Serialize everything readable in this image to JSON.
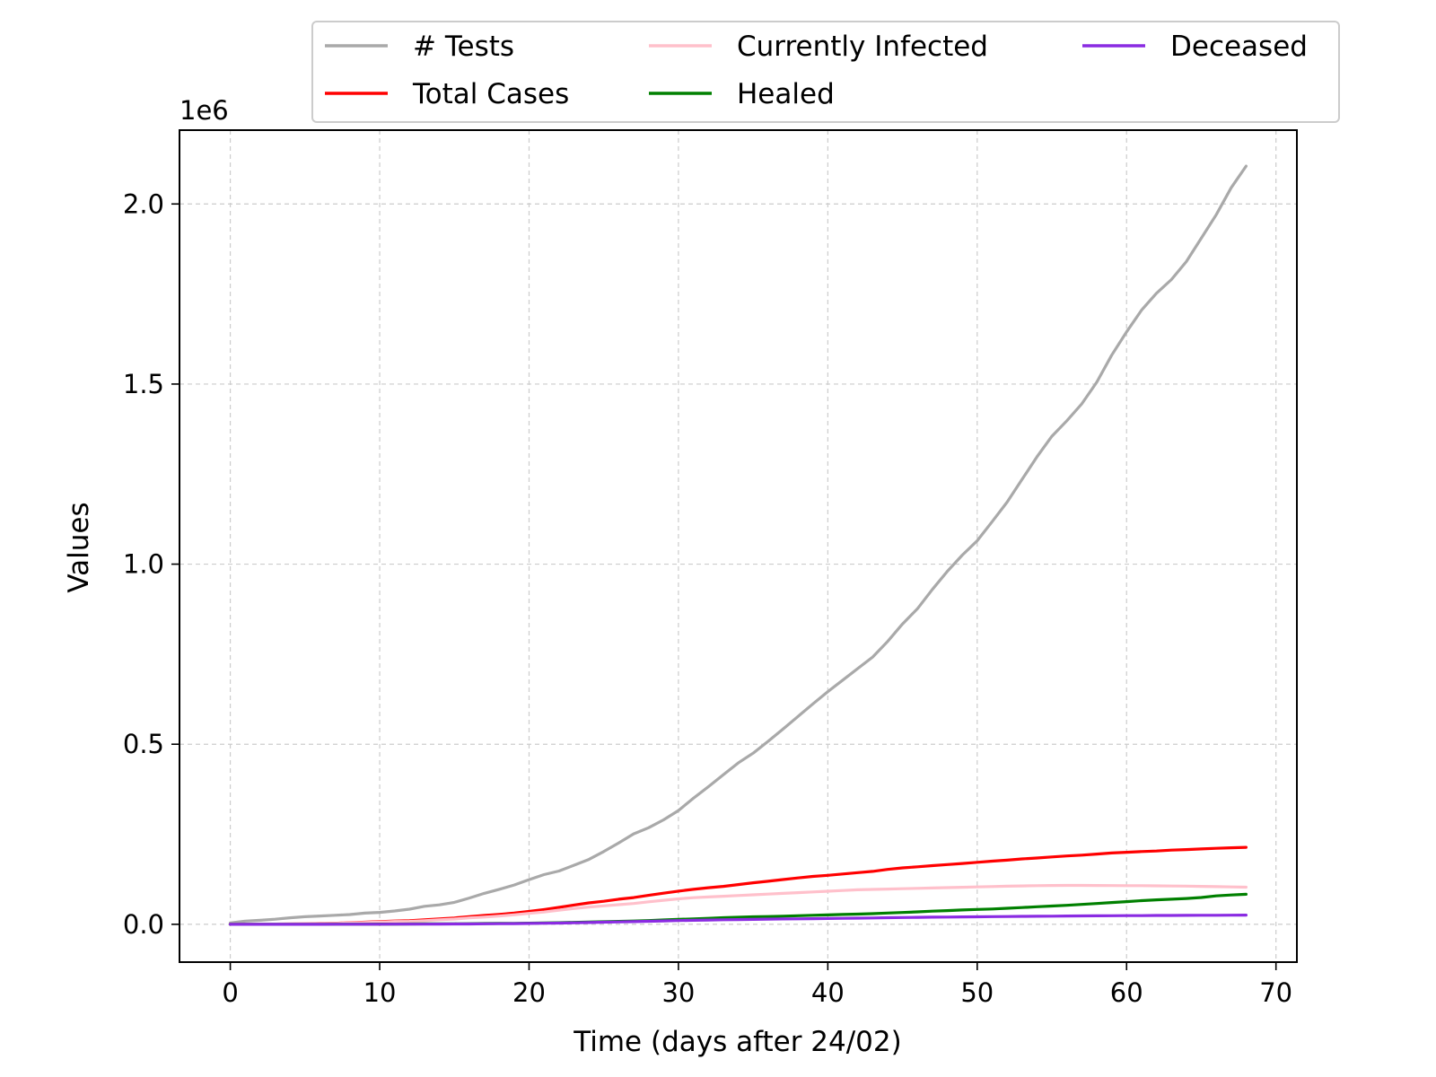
{
  "chart_data": {
    "type": "line",
    "title": "",
    "xlabel": "Time (days after 24/02)",
    "ylabel": "Values",
    "y_offset_label": "1e6",
    "xlim": [
      -3.4,
      71.4
    ],
    "ylim": [
      -0.105,
      2.205
    ],
    "x_ticks": [
      0,
      10,
      20,
      30,
      40,
      50,
      60,
      70
    ],
    "x_tick_labels": [
      "0",
      "10",
      "20",
      "30",
      "40",
      "50",
      "60",
      "70"
    ],
    "y_ticks": [
      0.0,
      0.5,
      1.0,
      1.5,
      2.0
    ],
    "y_tick_labels": [
      "0.0",
      "0.5",
      "1.0",
      "1.5",
      "2.0"
    ],
    "grid": true,
    "legend_position": "top, above plot, 3 columns",
    "x": [
      0,
      1,
      2,
      3,
      4,
      5,
      6,
      7,
      8,
      9,
      10,
      11,
      12,
      13,
      14,
      15,
      16,
      17,
      18,
      19,
      20,
      21,
      22,
      23,
      24,
      25,
      26,
      27,
      28,
      29,
      30,
      31,
      32,
      33,
      34,
      35,
      36,
      37,
      38,
      39,
      40,
      41,
      42,
      43,
      44,
      45,
      46,
      47,
      48,
      49,
      50,
      51,
      52,
      53,
      54,
      55,
      56,
      57,
      58,
      59,
      60,
      61,
      62,
      63,
      64,
      65,
      66,
      67,
      68
    ],
    "series": [
      {
        "name": "# Tests",
        "color": "#a9a9a9",
        "values": [
          0.004,
          0.009,
          0.011,
          0.014,
          0.018,
          0.021,
          0.023,
          0.025,
          0.027,
          0.031,
          0.033,
          0.037,
          0.042,
          0.05,
          0.054,
          0.061,
          0.073,
          0.086,
          0.097,
          0.109,
          0.124,
          0.138,
          0.148,
          0.164,
          0.18,
          0.202,
          0.226,
          0.251,
          0.268,
          0.29,
          0.316,
          0.35,
          0.382,
          0.415,
          0.448,
          0.475,
          0.508,
          0.542,
          0.577,
          0.612,
          0.646,
          0.678,
          0.71,
          0.742,
          0.785,
          0.834,
          0.876,
          0.93,
          0.98,
          1.025,
          1.065,
          1.118,
          1.172,
          1.235,
          1.298,
          1.355,
          1.398,
          1.445,
          1.505,
          1.58,
          1.645,
          1.705,
          1.752,
          1.79,
          1.84,
          1.905,
          1.97,
          2.045,
          2.105
        ]
      },
      {
        "name": "Total Cases",
        "color": "#ff0000",
        "values": [
          0.0002,
          0.0003,
          0.0004,
          0.0007,
          0.001,
          0.0015,
          0.0021,
          0.003,
          0.0044,
          0.0059,
          0.0076,
          0.0092,
          0.0102,
          0.0124,
          0.0152,
          0.0177,
          0.0212,
          0.0245,
          0.0276,
          0.0311,
          0.0359,
          0.0411,
          0.0471,
          0.0535,
          0.0595,
          0.0639,
          0.0696,
          0.0741,
          0.0804,
          0.0865,
          0.0921,
          0.0971,
          0.1015,
          0.1054,
          0.1103,
          0.1154,
          0.1195,
          0.1242,
          0.1288,
          0.1329,
          0.1359,
          0.1398,
          0.1434,
          0.147,
          0.1524,
          0.1567,
          0.1596,
          0.1628,
          0.1659,
          0.1688,
          0.172,
          0.1754,
          0.1782,
          0.1815,
          0.184,
          0.1871,
          0.1898,
          0.1921,
          0.1951,
          0.1979,
          0.1999,
          0.2019,
          0.2036,
          0.2059,
          0.2076,
          0.2092,
          0.2109,
          0.2124,
          0.2138
        ]
      },
      {
        "name": "Currently Infected",
        "color": "#ffc0cb",
        "values": [
          0.0002,
          0.0003,
          0.0003,
          0.0006,
          0.0008,
          0.0013,
          0.0017,
          0.0023,
          0.0037,
          0.005,
          0.0064,
          0.0078,
          0.0082,
          0.0102,
          0.0126,
          0.0146,
          0.0178,
          0.0202,
          0.0228,
          0.0262,
          0.0302,
          0.0341,
          0.0394,
          0.0438,
          0.0479,
          0.0513,
          0.0544,
          0.0578,
          0.0624,
          0.0668,
          0.0706,
          0.0738,
          0.0758,
          0.0778,
          0.0798,
          0.0818,
          0.0838,
          0.0858,
          0.0878,
          0.0898,
          0.0918,
          0.0938,
          0.0958,
          0.0968,
          0.0978,
          0.0988,
          0.0998,
          0.1008,
          0.1018,
          0.1028,
          0.1038,
          0.1048,
          0.1058,
          0.1066,
          0.1074,
          0.1078,
          0.108,
          0.108,
          0.1078,
          0.1076,
          0.1074,
          0.1072,
          0.1068,
          0.1064,
          0.106,
          0.1054,
          0.1046,
          0.1038,
          0.103
        ]
      },
      {
        "name": "Healed",
        "color": "#008000",
        "values": [
          0,
          0,
          0,
          0,
          0.0001,
          0.0001,
          0.0002,
          0.0003,
          0.0004,
          0.0005,
          0.0006,
          0.0007,
          0.001,
          0.0011,
          0.0013,
          0.0015,
          0.0017,
          0.0021,
          0.0024,
          0.0027,
          0.0032,
          0.0037,
          0.0044,
          0.0054,
          0.0063,
          0.0072,
          0.0082,
          0.0092,
          0.0105,
          0.0122,
          0.0137,
          0.0152,
          0.0166,
          0.0184,
          0.0195,
          0.0208,
          0.0217,
          0.0225,
          0.0239,
          0.0251,
          0.026,
          0.0274,
          0.0284,
          0.0295,
          0.0312,
          0.0328,
          0.0345,
          0.0365,
          0.0381,
          0.0398,
          0.0412,
          0.0425,
          0.0444,
          0.0466,
          0.0488,
          0.0508,
          0.0528,
          0.0552,
          0.0577,
          0.0604,
          0.063,
          0.0657,
          0.068,
          0.0697,
          0.0717,
          0.0743,
          0.079,
          0.0815,
          0.0835
        ]
      },
      {
        "name": "Deceased",
        "color": "#8a2be2",
        "values": [
          0,
          0,
          0,
          0,
          0,
          0,
          0,
          0.0001,
          0.0001,
          0.0001,
          0.0002,
          0.0003,
          0.0004,
          0.0005,
          0.0006,
          0.0008,
          0.001,
          0.0013,
          0.0016,
          0.002,
          0.0024,
          0.0028,
          0.0034,
          0.0041,
          0.0049,
          0.0058,
          0.0066,
          0.0074,
          0.0084,
          0.0094,
          0.0105,
          0.0112,
          0.0118,
          0.0125,
          0.0131,
          0.0137,
          0.0143,
          0.0148,
          0.0152,
          0.0156,
          0.0161,
          0.0166,
          0.0171,
          0.0177,
          0.0183,
          0.0189,
          0.0194,
          0.0198,
          0.0202,
          0.0205,
          0.0209,
          0.0213,
          0.0217,
          0.0221,
          0.0224,
          0.0227,
          0.023,
          0.0233,
          0.0236,
          0.0238,
          0.024,
          0.0242,
          0.0245,
          0.0246,
          0.0248,
          0.025,
          0.0251,
          0.0253,
          0.0255
        ]
      }
    ]
  }
}
